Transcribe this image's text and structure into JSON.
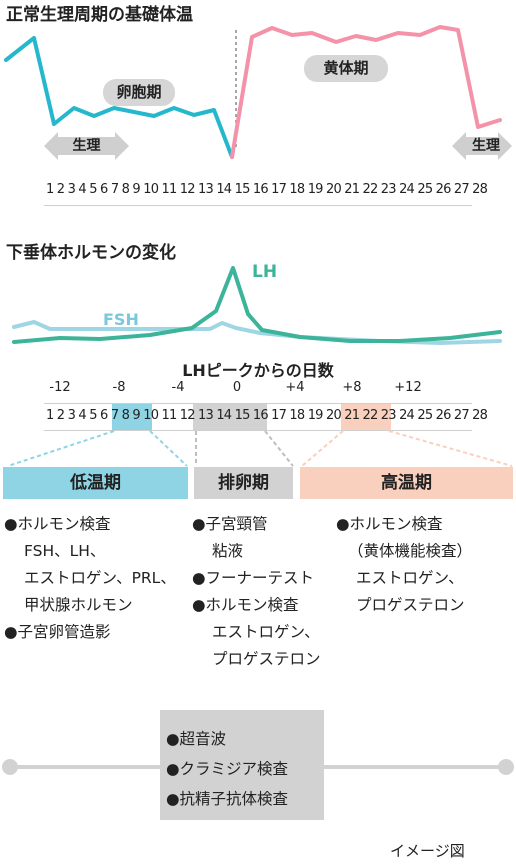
{
  "bbt": {
    "title": "正常生理周期の基礎体温",
    "phase_follicular": "卵胞期",
    "phase_luteal": "黄体期",
    "menses_left": "生理",
    "menses_right": "生理",
    "days_text": "1 2 3 4 5 6 7 8 9 10 11 12 13 14 15 16 17 18 19 20 21 22 23 24 25 26 27 28",
    "colors": {
      "low": "#25b7cc",
      "high": "#f392a8",
      "arrow": "#cfcfcf",
      "divider": "#888888"
    }
  },
  "hormone": {
    "title": "下垂体ホルモンの変化",
    "lh_label": "LH",
    "fsh_label": "FSH",
    "colors": {
      "lh": "#3cb49a",
      "fsh": "#9fd6e4"
    }
  },
  "lh_peak": {
    "title": "LHピークからの日数",
    "ticks": [
      "-12",
      "-8",
      "-4",
      "0",
      "+4",
      "+8",
      "+12"
    ],
    "days_text": "1 2 3 4 5 6 7 8 9 10 11 12 13 14 15 16 17 18 19 20 21 22 23 24 25 26 27 28"
  },
  "phases": {
    "low": {
      "label": "低温期",
      "color": "#8fd4e4"
    },
    "ovulation": {
      "label": "排卵期",
      "color": "#d2d2d2"
    },
    "high": {
      "label": "高温期",
      "color": "#f9cfbd"
    }
  },
  "tests_low": {
    "item1": "●ホルモン検査",
    "item1_line2": "FSH、LH、",
    "item1_line3": "エストロゲン、PRL、",
    "item1_line4": "甲状腺ホルモン",
    "item2": "●子宮卵管造影"
  },
  "tests_ovulation": {
    "item1": "●子宮頸管",
    "item1_line2": "粘液",
    "item2": "●フーナーテスト",
    "item3": "●ホルモン検査",
    "item3_line2": "エストロゲン、",
    "item3_line3": "プロゲステロン"
  },
  "tests_high": {
    "item1": "●ホルモン検査",
    "item1_line2": "（黄体機能検査）",
    "item1_line3": "エストロゲン、",
    "item1_line4": "プロゲステロン"
  },
  "tests_all": {
    "item1": "●超音波",
    "item2": "●クラミジア検査",
    "item3": "●抗精子抗体検査"
  },
  "footer": {
    "note": "イメージ図"
  }
}
